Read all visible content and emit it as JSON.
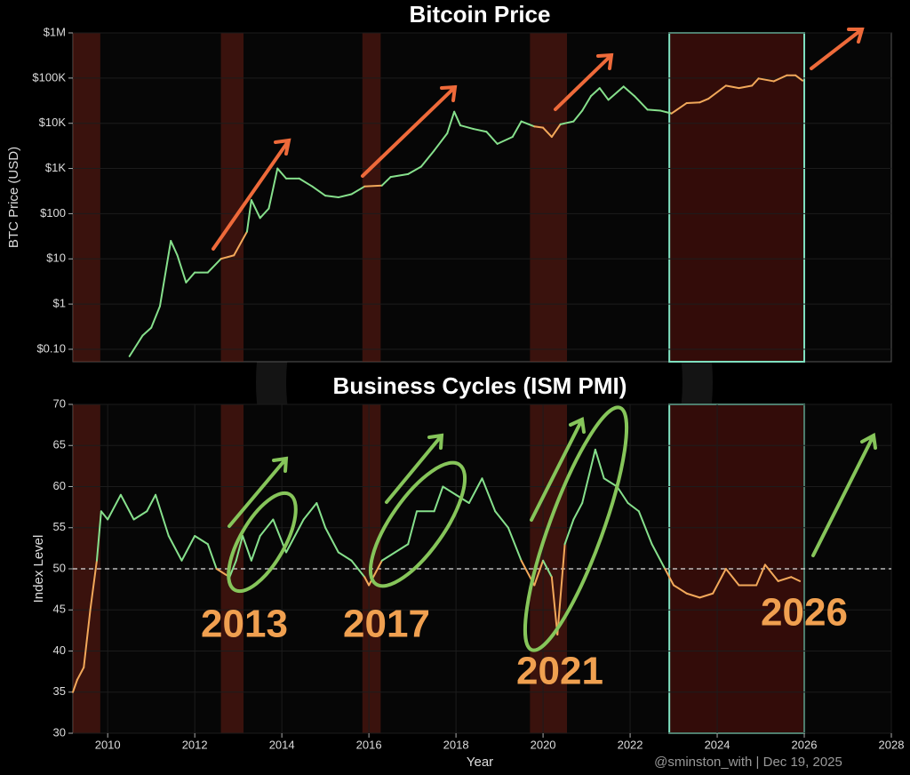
{
  "chart_data": [
    {
      "type": "line",
      "title": "Bitcoin Price",
      "y_label": "BTC Price (USD)",
      "log_scale": true,
      "x": [
        2010.5,
        2010.8,
        2011.0,
        2011.2,
        2011.45,
        2011.6,
        2011.8,
        2012.0,
        2012.3,
        2012.6,
        2012.9,
        2013.2,
        2013.3,
        2013.5,
        2013.7,
        2013.9,
        2014.1,
        2014.4,
        2014.7,
        2015.0,
        2015.3,
        2015.6,
        2015.9,
        2016.3,
        2016.5,
        2016.9,
        2017.2,
        2017.5,
        2017.8,
        2017.96,
        2018.1,
        2018.4,
        2018.7,
        2018.95,
        2019.3,
        2019.5,
        2019.8,
        2020.0,
        2020.2,
        2020.4,
        2020.7,
        2020.9,
        2021.1,
        2021.3,
        2021.5,
        2021.85,
        2022.1,
        2022.4,
        2022.7,
        2022.95,
        2023.3,
        2023.6,
        2023.8,
        2024.2,
        2024.5,
        2024.8,
        2024.95,
        2025.3,
        2025.6,
        2025.8,
        2025.96
      ],
      "series": [
        {
          "color": "#86e08c",
          "alt_color": "#f2a85a",
          "values": [
            0.07,
            0.2,
            0.3,
            0.9,
            25,
            12,
            3,
            5,
            5,
            10,
            12,
            40,
            200,
            80,
            130,
            1000,
            600,
            600,
            400,
            250,
            230,
            270,
            400,
            420,
            650,
            750,
            1100,
            2500,
            6000,
            18000,
            9000,
            7500,
            6500,
            3500,
            5000,
            11000,
            8500,
            8000,
            5000,
            9500,
            11000,
            19000,
            40000,
            60000,
            33000,
            65000,
            40000,
            20000,
            19000,
            16500,
            28000,
            29000,
            35000,
            68000,
            60000,
            68000,
            98000,
            85000,
            115000,
            115000,
            88000
          ]
        }
      ],
      "xlim": [
        2009.2,
        2028
      ],
      "ylim": [
        0.053,
        1000000
      ],
      "yticks": [
        {
          "value": 0.1,
          "label": "$0.10"
        },
        {
          "value": 1,
          "label": "$1"
        },
        {
          "value": 10,
          "label": "$10"
        },
        {
          "value": 100,
          "label": "$100"
        },
        {
          "value": 1000,
          "label": "$1K"
        },
        {
          "value": 10000,
          "label": "$10K"
        },
        {
          "value": 100000,
          "label": "$100K"
        },
        {
          "value": 1000000,
          "label": "$1M"
        }
      ],
      "shaded_regions": [
        [
          2009.2,
          2009.83
        ],
        [
          2012.6,
          2013.12
        ],
        [
          2015.85,
          2016.27
        ],
        [
          2019.7,
          2020.55
        ],
        [
          2022.9,
          2026.0
        ]
      ],
      "highlight": [
        2022.9,
        2026.0
      ],
      "highlight_color": "#7fe0c0"
    },
    {
      "type": "line",
      "title": "Business Cycles (ISM PMI)",
      "x_label": "Year",
      "y_label": "Index Level",
      "x": [
        2009.2,
        2009.3,
        2009.45,
        2009.6,
        2009.75,
        2009.85,
        2010.0,
        2010.3,
        2010.6,
        2010.9,
        2011.1,
        2011.4,
        2011.7,
        2012.0,
        2012.3,
        2012.5,
        2012.8,
        2012.95,
        2013.1,
        2013.3,
        2013.5,
        2013.8,
        2014.1,
        2014.5,
        2014.8,
        2015.0,
        2015.3,
        2015.6,
        2015.9,
        2016.0,
        2016.3,
        2016.6,
        2016.9,
        2017.1,
        2017.5,
        2017.7,
        2018.0,
        2018.3,
        2018.6,
        2018.9,
        2019.2,
        2019.5,
        2019.8,
        2020.0,
        2020.2,
        2020.33,
        2020.5,
        2020.7,
        2020.9,
        2021.2,
        2021.4,
        2021.7,
        2021.95,
        2022.2,
        2022.5,
        2022.8,
        2023.0,
        2023.3,
        2023.6,
        2023.9,
        2024.2,
        2024.5,
        2024.9,
        2025.1,
        2025.4,
        2025.7,
        2025.9
      ],
      "series": [
        {
          "color": "#86e08c",
          "alt_color": "#f2a85a",
          "values": [
            35,
            36.5,
            38,
            45,
            51,
            57,
            56,
            59,
            56,
            57,
            59,
            54,
            51,
            54,
            53,
            50,
            49,
            51,
            54,
            51,
            54,
            56,
            52,
            56,
            58,
            55,
            52,
            51,
            49,
            48,
            51,
            52,
            53,
            57,
            57,
            60,
            59,
            58,
            61,
            57,
            55,
            51,
            48,
            51,
            49,
            42,
            53,
            56,
            58,
            64.5,
            61,
            60,
            58,
            57,
            53,
            50,
            48,
            47,
            46.5,
            47,
            50,
            48,
            48,
            50.5,
            48.5,
            49,
            48.5
          ]
        }
      ],
      "threshold": 50,
      "xlim": [
        2009.2,
        2028
      ],
      "ylim": [
        30,
        70
      ],
      "xticks": [
        2010,
        2012,
        2014,
        2016,
        2018,
        2020,
        2022,
        2024,
        2026,
        2028
      ],
      "yticks": [
        30,
        35,
        40,
        45,
        50,
        55,
        60,
        65,
        70
      ],
      "annotations": [
        "2013",
        "2017",
        "2021",
        "2026"
      ]
    }
  ],
  "footer": "@sminston_with  |  Dec 19, 2025"
}
